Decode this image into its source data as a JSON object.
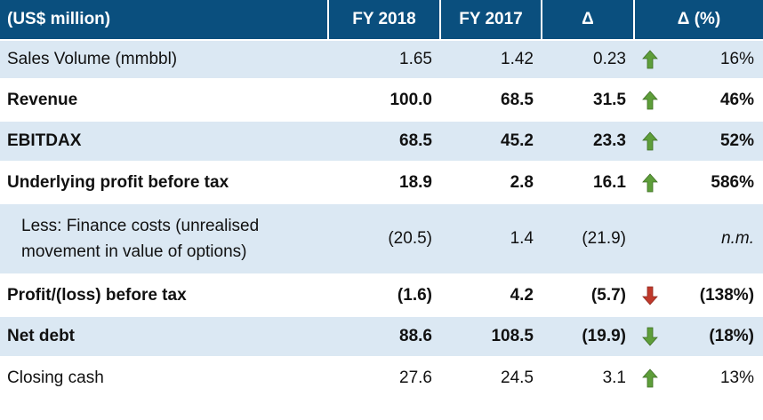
{
  "header": {
    "label": "(US$ million)",
    "col1": "FY 2018",
    "col2": "FY 2017",
    "col3": "Δ",
    "col4": "Δ (%)"
  },
  "rows": [
    {
      "label": "Sales Volume (mmbbl)",
      "fy2018": "1.65",
      "fy2017": "1.42",
      "delta": "0.23",
      "pct": "16%",
      "arrow": "up",
      "arrow_color": "#5e9e3a"
    },
    {
      "label": "Revenue",
      "fy2018": "100.0",
      "fy2017": "68.5",
      "delta": "31.5",
      "pct": "46%",
      "arrow": "up",
      "arrow_color": "#5e9e3a"
    },
    {
      "label": "EBITDAX",
      "fy2018": "68.5",
      "fy2017": "45.2",
      "delta": "23.3",
      "pct": "52%",
      "arrow": "up",
      "arrow_color": "#5e9e3a"
    },
    {
      "label": "Underlying profit before tax",
      "fy2018": "18.9",
      "fy2017": "2.8",
      "delta": "16.1",
      "pct": "586%",
      "arrow": "up",
      "arrow_color": "#5e9e3a"
    },
    {
      "label_line1": "Less: Finance costs (unrealised",
      "label_line2": "movement in value of options)",
      "fy2018": "(20.5)",
      "fy2017": "1.4",
      "delta": "(21.9)",
      "pct": "n.m."
    },
    {
      "label": "Profit/(loss) before tax",
      "fy2018": "(1.6)",
      "fy2017": "4.2",
      "delta": "(5.7)",
      "pct": "(138%)",
      "arrow": "down",
      "arrow_color": "#c0392b"
    },
    {
      "label": "Net debt",
      "fy2018": "88.6",
      "fy2017": "108.5",
      "delta": "(19.9)",
      "pct": "(18%)",
      "arrow": "down",
      "arrow_color": "#5e9e3a"
    },
    {
      "label": "Closing cash",
      "fy2018": "27.6",
      "fy2017": "24.5",
      "delta": "3.1",
      "pct": "13%",
      "arrow": "up",
      "arrow_color": "#5e9e3a"
    }
  ]
}
